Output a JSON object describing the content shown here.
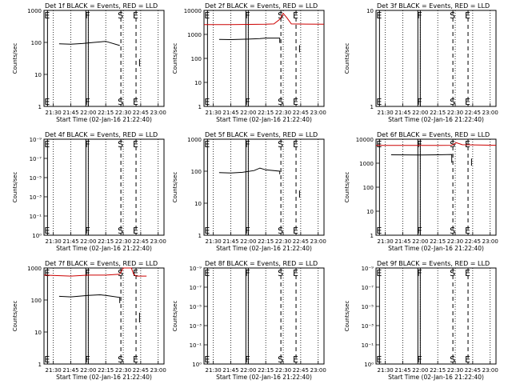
{
  "chart_data": [
    {
      "type": "line",
      "title": "Det 1f BLACK = Events, RED = LLD",
      "xlabel": "Start Time (02-Jan-16 21:22:40)",
      "ylabel": "Counts/sec",
      "y_scale": "log",
      "ylim": [
        1,
        1000
      ],
      "y_ticks": [
        "1",
        "10",
        "100",
        "1000"
      ],
      "x_ticks": [
        "21:30",
        "21:45",
        "22:00",
        "22:15",
        "22:30",
        "22:45",
        "23:00"
      ],
      "xlim": [
        "21:22",
        "23:05"
      ],
      "markers": [
        {
          "label": "E",
          "x": "21:25",
          "style": "solid"
        },
        {
          "label": "F",
          "x": "22:00",
          "style": "solid"
        },
        {
          "label": "S",
          "x": "22:28",
          "style": "dashed"
        },
        {
          "label": "E",
          "x": "22:41",
          "style": "dashed"
        }
      ],
      "series": [
        {
          "color": "#000000",
          "points": [
            [
              "21:35",
              90
            ],
            [
              "21:45",
              88
            ],
            [
              "21:55",
              92
            ],
            [
              "22:05",
              100
            ],
            [
              "22:15",
              108
            ],
            [
              "22:27",
              80
            ]
          ]
        },
        {
          "color": "#000000",
          "points": [
            [
              "22:44",
              18
            ],
            [
              "22:44",
              30
            ]
          ]
        }
      ]
    },
    {
      "type": "line",
      "title": "Det 2f BLACK = Events, RED = LLD",
      "xlabel": "Start Time (02-Jan-16 21:22:40)",
      "ylabel": "Counts/sec",
      "y_scale": "log",
      "ylim": [
        1,
        12000
      ],
      "y_ticks": [
        "1",
        "10",
        "100",
        "1000",
        "10000"
      ],
      "x_ticks": [
        "21:30",
        "21:45",
        "22:00",
        "22:15",
        "22:30",
        "22:45",
        "23:00"
      ],
      "xlim": [
        "21:22",
        "23:05"
      ],
      "markers": [
        {
          "label": "E",
          "x": "21:25",
          "style": "solid"
        },
        {
          "label": "F",
          "x": "22:00",
          "style": "solid"
        },
        {
          "label": "S",
          "x": "22:28",
          "style": "dashed"
        },
        {
          "label": "E",
          "x": "22:41",
          "style": "dashed"
        }
      ],
      "series": [
        {
          "color": "#cc0000",
          "points": [
            [
              "21:22",
              3000
            ],
            [
              "21:45",
              3000
            ],
            [
              "22:15",
              3100
            ],
            [
              "22:22",
              3200
            ],
            [
              "22:27",
              5000
            ],
            [
              "22:30",
              9000
            ],
            [
              "22:33",
              6000
            ],
            [
              "22:37",
              3200
            ],
            [
              "23:05",
              3100
            ]
          ]
        },
        {
          "color": "#000000",
          "points": [
            [
              "21:35",
              700
            ],
            [
              "21:45",
              690
            ],
            [
              "22:00",
              720
            ],
            [
              "22:10",
              760
            ],
            [
              "22:15",
              800
            ],
            [
              "22:27",
              800
            ],
            [
              "22:27",
              500
            ]
          ]
        },
        {
          "color": "#000000",
          "points": [
            [
              "22:44",
              200
            ],
            [
              "22:44",
              400
            ]
          ]
        }
      ]
    },
    {
      "type": "line",
      "title": "Det 3f BLACK = Events, RED = LLD",
      "xlabel": "Start Time (02-Jan-16 21:22:40)",
      "ylabel": "Counts/sec",
      "y_scale": "log",
      "ylim": [
        1,
        10
      ],
      "y_ticks": [
        "1",
        "10"
      ],
      "x_ticks": [
        "21:30",
        "21:45",
        "22:00",
        "22:15",
        "22:30",
        "22:45",
        "23:00"
      ],
      "xlim": [
        "21:22",
        "23:05"
      ],
      "markers": [
        {
          "label": "E",
          "x": "21:25",
          "style": "solid"
        },
        {
          "label": "F",
          "x": "22:00",
          "style": "solid"
        },
        {
          "label": "S",
          "x": "22:28",
          "style": "dashed"
        },
        {
          "label": "E",
          "x": "22:41",
          "style": "dashed"
        }
      ],
      "series": []
    },
    {
      "type": "line",
      "title": "Det 4f BLACK = Events, RED = LLD",
      "xlabel": "Start Time (02-Jan-16 21:22:40)",
      "ylabel": "Counts/sec",
      "y_scale": "log",
      "ylim": [
        1,
        10000000000
      ],
      "y_ticks": [
        "10⁰",
        "10⁻¹",
        "10⁻³",
        "10⁻⁵",
        "10⁻⁷",
        "10⁻⁹"
      ],
      "x_ticks": [
        "21:30",
        "21:45",
        "22:00",
        "22:15",
        "22:30",
        "22:45",
        "23:00"
      ],
      "xlim": [
        "21:22",
        "23:05"
      ],
      "markers": [
        {
          "label": "E",
          "x": "21:25",
          "style": "solid"
        },
        {
          "label": "F",
          "x": "22:00",
          "style": "solid"
        },
        {
          "label": "S",
          "x": "22:28",
          "style": "dashed"
        },
        {
          "label": "E",
          "x": "22:41",
          "style": "dashed"
        }
      ],
      "series": []
    },
    {
      "type": "line",
      "title": "Det 5f BLACK = Events, RED = LLD",
      "xlabel": "Start Time (02-Jan-16 21:22:40)",
      "ylabel": "Counts/sec",
      "y_scale": "log",
      "ylim": [
        1,
        1000
      ],
      "y_ticks": [
        "1",
        "10",
        "100",
        "1000"
      ],
      "x_ticks": [
        "21:30",
        "21:45",
        "22:00",
        "22:15",
        "22:30",
        "22:45",
        "23:00"
      ],
      "xlim": [
        "21:22",
        "23:05"
      ],
      "markers": [
        {
          "label": "E",
          "x": "21:25",
          "style": "solid"
        },
        {
          "label": "F",
          "x": "22:00",
          "style": "solid"
        },
        {
          "label": "S",
          "x": "22:28",
          "style": "dashed"
        },
        {
          "label": "E",
          "x": "22:41",
          "style": "dashed"
        }
      ],
      "series": [
        {
          "color": "#000000",
          "points": [
            [
              "21:35",
              90
            ],
            [
              "21:45",
              88
            ],
            [
              "21:55",
              92
            ],
            [
              "22:05",
              105
            ],
            [
              "22:10",
              125
            ],
            [
              "22:15",
              110
            ],
            [
              "22:27",
              100
            ],
            [
              "22:27",
              80
            ]
          ]
        },
        {
          "color": "#000000",
          "points": [
            [
              "22:44",
              15
            ],
            [
              "22:44",
              25
            ]
          ]
        }
      ]
    },
    {
      "type": "line",
      "title": "Det 6f BLACK = Events, RED = LLD",
      "xlabel": "Start Time (02-Jan-16 21:22:40)",
      "ylabel": "Counts/sec",
      "y_scale": "log",
      "ylim": [
        1,
        12000
      ],
      "y_ticks": [
        "1",
        "10",
        "100",
        "1000",
        "10000"
      ],
      "x_ticks": [
        "21:30",
        "21:45",
        "22:00",
        "22:15",
        "22:30",
        "22:45",
        "23:00"
      ],
      "xlim": [
        "21:22",
        "23:05"
      ],
      "markers": [
        {
          "label": "E",
          "x": "21:25",
          "style": "solid"
        },
        {
          "label": "F",
          "x": "22:00",
          "style": "solid"
        },
        {
          "label": "S",
          "x": "22:28",
          "style": "dashed"
        },
        {
          "label": "E",
          "x": "22:41",
          "style": "dashed"
        }
      ],
      "series": [
        {
          "color": "#cc0000",
          "points": [
            [
              "21:22",
              6500
            ],
            [
              "22:15",
              6500
            ],
            [
              "22:27",
              6600
            ],
            [
              "22:31",
              8500
            ],
            [
              "22:36",
              7000
            ],
            [
              "23:05",
              6600
            ]
          ]
        },
        {
          "color": "#000000",
          "points": [
            [
              "21:35",
              2600
            ],
            [
              "22:00",
              2550
            ],
            [
              "22:15",
              2600
            ],
            [
              "22:27",
              2700
            ],
            [
              "22:27",
              1200
            ]
          ]
        },
        {
          "color": "#000000",
          "points": [
            [
              "22:44",
              900
            ],
            [
              "22:44",
              1800
            ]
          ]
        }
      ]
    },
    {
      "type": "line",
      "title": "Det 7f BLACK = Events, RED = LLD",
      "xlabel": "Start Time (02-Jan-16 21:22:40)",
      "ylabel": "Counts/sec",
      "y_scale": "log",
      "ylim": [
        1,
        1000
      ],
      "y_ticks": [
        "1",
        "10",
        "100",
        "1000"
      ],
      "x_ticks": [
        "21:30",
        "21:45",
        "22:00",
        "22:15",
        "22:30",
        "22:45",
        "23:00"
      ],
      "xlim": [
        "21:22",
        "23:05"
      ],
      "markers": [
        {
          "label": "E",
          "x": "21:25",
          "style": "solid"
        },
        {
          "label": "F",
          "x": "22:00",
          "style": "solid"
        },
        {
          "label": "S",
          "x": "22:28",
          "style": "dashed"
        },
        {
          "label": "E",
          "x": "22:41",
          "style": "dashed"
        }
      ],
      "series": [
        {
          "color": "#cc0000",
          "points": [
            [
              "21:22",
              600
            ],
            [
              "21:45",
              560
            ],
            [
              "22:00",
              600
            ],
            [
              "22:15",
              600
            ],
            [
              "22:27",
              640
            ],
            [
              "22:30",
              1000
            ],
            [
              "22:37",
              1000
            ],
            [
              "22:39",
              640
            ],
            [
              "22:41",
              560
            ],
            [
              "22:50",
              560
            ]
          ]
        },
        {
          "color": "#000000",
          "points": [
            [
              "21:35",
              130
            ],
            [
              "21:45",
              125
            ],
            [
              "22:00",
              140
            ],
            [
              "22:10",
              145
            ],
            [
              "22:15",
              140
            ],
            [
              "22:27",
              120
            ],
            [
              "22:27",
              80
            ]
          ]
        },
        {
          "color": "#000000",
          "points": [
            [
              "22:44",
              20
            ],
            [
              "22:44",
              40
            ]
          ]
        }
      ]
    },
    {
      "type": "line",
      "title": "Det 8f BLACK = Events, RED = LLD",
      "xlabel": "Start Time (02-Jan-16 21:22:40)",
      "ylabel": "Counts/sec",
      "y_scale": "log",
      "ylim": [
        1,
        10000000000
      ],
      "y_ticks": [
        "10⁰",
        "10⁻¹",
        "10⁻³",
        "10⁻⁵",
        "10⁻⁷",
        "10⁻⁹"
      ],
      "x_ticks": [
        "21:30",
        "21:45",
        "22:00",
        "22:15",
        "22:30",
        "22:45",
        "23:00"
      ],
      "xlim": [
        "21:22",
        "23:05"
      ],
      "markers": [
        {
          "label": "E",
          "x": "21:25",
          "style": "solid"
        },
        {
          "label": "F",
          "x": "22:00",
          "style": "solid"
        },
        {
          "label": "S",
          "x": "22:28",
          "style": "dashed"
        },
        {
          "label": "E",
          "x": "22:41",
          "style": "dashed"
        }
      ],
      "series": []
    },
    {
      "type": "line",
      "title": "Det 9f BLACK = Events, RED = LLD",
      "xlabel": "Start Time (02-Jan-16 21:22:40)",
      "ylabel": "Counts/sec",
      "y_scale": "log",
      "ylim": [
        1,
        10000000000
      ],
      "y_ticks": [
        "10⁰",
        "10⁻¹",
        "10⁻³",
        "10⁻⁵",
        "10⁻⁷",
        "10⁻⁹"
      ],
      "x_ticks": [
        "21:30",
        "21:45",
        "22:00",
        "22:15",
        "22:30",
        "22:45",
        "23:00"
      ],
      "xlim": [
        "21:22",
        "23:05"
      ],
      "markers": [
        {
          "label": "E",
          "x": "21:25",
          "style": "solid"
        },
        {
          "label": "F",
          "x": "22:00",
          "style": "solid"
        },
        {
          "label": "S",
          "x": "22:28",
          "style": "dashed"
        },
        {
          "label": "E",
          "x": "22:41",
          "style": "dashed"
        }
      ],
      "series": []
    }
  ]
}
